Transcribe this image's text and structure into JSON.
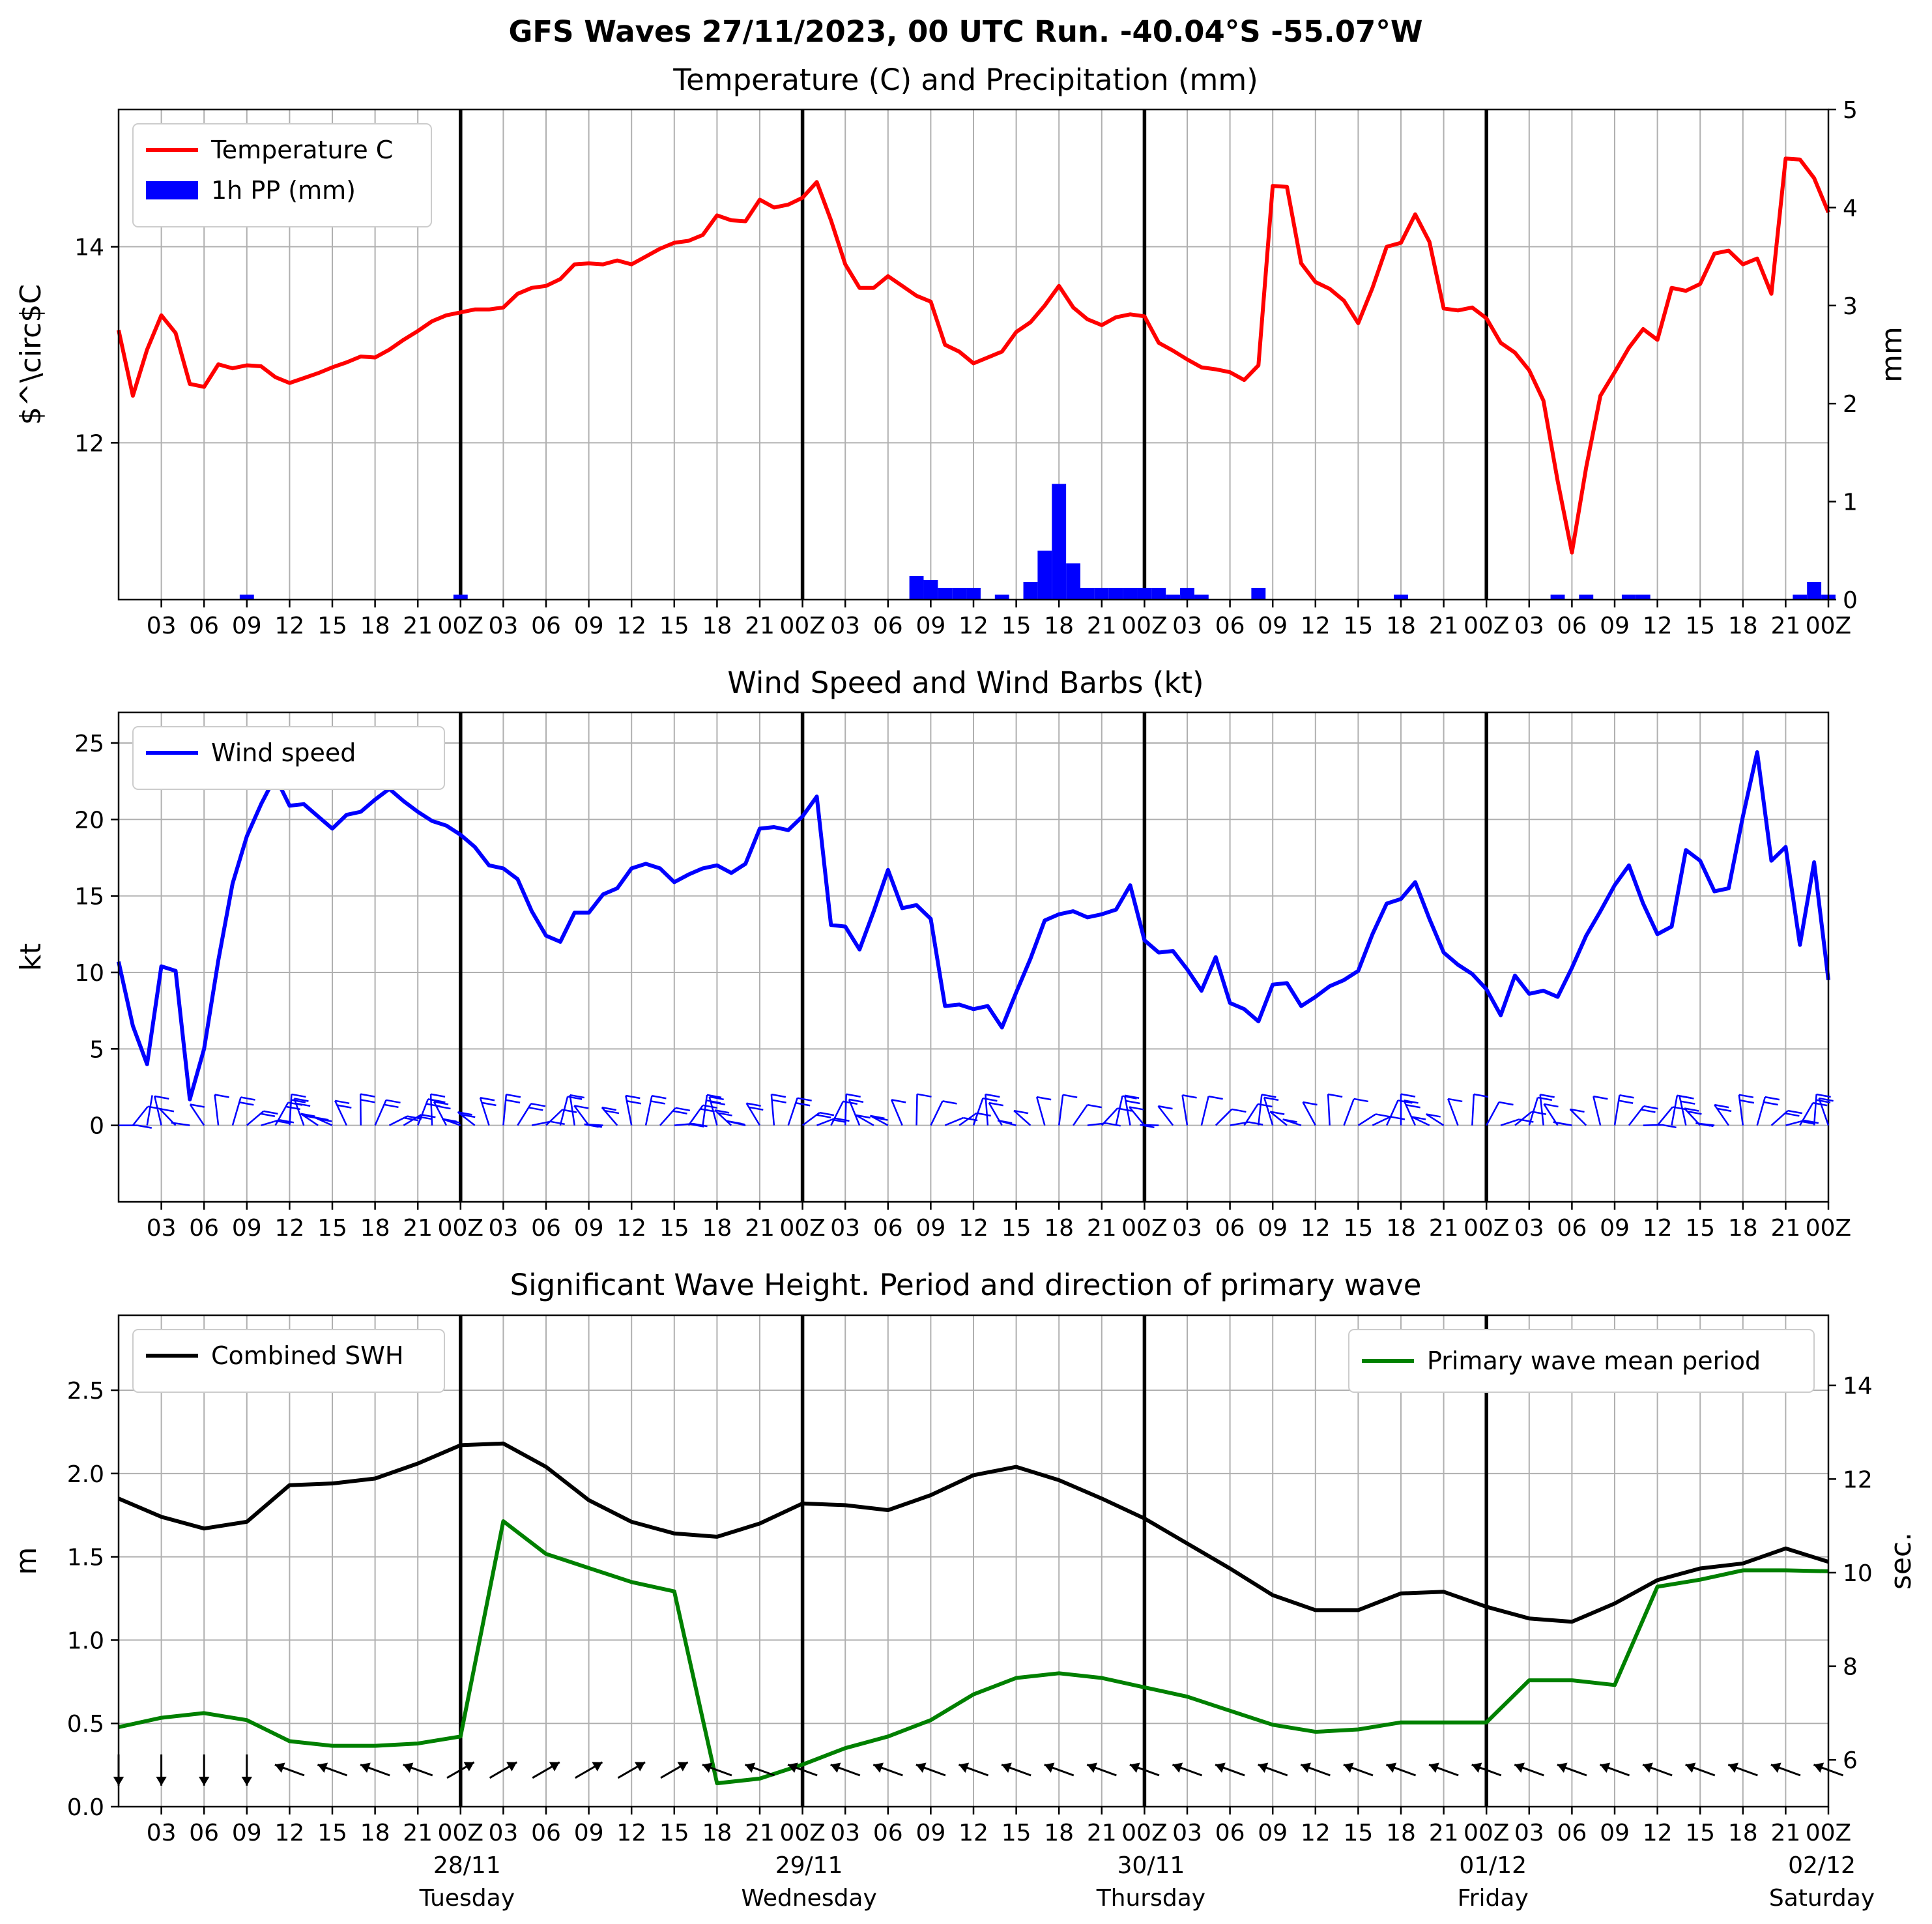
{
  "title": "GFS Waves 27/11/2023, 00 UTC Run. -40.04°S -55.07°W",
  "time_axis": {
    "tick_labels": [
      "03",
      "06",
      "09",
      "12",
      "15",
      "18",
      "21",
      "00Z",
      "03",
      "06",
      "09",
      "12",
      "15",
      "18",
      "21",
      "00Z",
      "03",
      "06",
      "09",
      "12",
      "15",
      "18",
      "21",
      "00Z",
      "03",
      "06",
      "09",
      "12",
      "15",
      "18",
      "21",
      "00Z",
      "03",
      "06",
      "09",
      "12",
      "15",
      "18",
      "21",
      "00Z"
    ],
    "day_labels": [
      {
        "date": "28/11",
        "weekday": "Tuesday"
      },
      {
        "date": "29/11",
        "weekday": "Wednesday"
      },
      {
        "date": "30/11",
        "weekday": "Thursday"
      },
      {
        "date": "01/12",
        "weekday": "Friday"
      },
      {
        "date": "02/12",
        "weekday": "Saturday"
      }
    ]
  },
  "chart_data": [
    {
      "type": "line",
      "title": "Temperature (C) and Precipitation (mm)",
      "ylabel": "$^\\circ$C",
      "ylabel_right": "mm",
      "x_unit": "hours from 27/11/2023 00 UTC",
      "xlim": [
        0,
        120
      ],
      "ylim": [
        10.4,
        15.4
      ],
      "y_ticks": [
        12,
        14
      ],
      "ylim_right": [
        0,
        5
      ],
      "y_ticks_right": [
        0,
        1,
        2,
        3,
        4,
        5
      ],
      "legend": "top-left",
      "grid": true,
      "series": [
        {
          "name": "Temperature C",
          "color": "#ff0000",
          "x": [
            0,
            1,
            2,
            3,
            4,
            5,
            6,
            7,
            8,
            9,
            10,
            11,
            12,
            13,
            14,
            15,
            16,
            17,
            18,
            19,
            20,
            21,
            22,
            23,
            24,
            25,
            26,
            27,
            28,
            29,
            30,
            31,
            32,
            33,
            34,
            35,
            36,
            37,
            38,
            39,
            40,
            41,
            42,
            43,
            44,
            45,
            46,
            47,
            48,
            49,
            50,
            51,
            52,
            53,
            54,
            55,
            56,
            57,
            58,
            59,
            60,
            61,
            62,
            63,
            64,
            65,
            66,
            67,
            68,
            69,
            70,
            71,
            72,
            73,
            74,
            75,
            76,
            77,
            78,
            79,
            80,
            81,
            82,
            83,
            84,
            85,
            86,
            87,
            88,
            89,
            90,
            91,
            92,
            93,
            94,
            95,
            96,
            97,
            98,
            99,
            100,
            101,
            102,
            103,
            104,
            105,
            106,
            107,
            108,
            109,
            110,
            111,
            112,
            113,
            114,
            115,
            116,
            117,
            118,
            119,
            120
          ],
          "values": [
            13.15,
            12.48,
            12.95,
            13.3,
            13.12,
            12.6,
            12.57,
            12.8,
            12.76,
            12.79,
            12.78,
            12.67,
            12.61,
            12.66,
            12.71,
            12.77,
            12.82,
            12.88,
            12.87,
            12.95,
            13.05,
            13.14,
            13.24,
            13.3,
            13.33,
            13.36,
            13.36,
            13.38,
            13.52,
            13.58,
            13.6,
            13.67,
            13.82,
            13.83,
            13.82,
            13.86,
            13.82,
            13.9,
            13.98,
            14.04,
            14.06,
            14.12,
            14.32,
            14.27,
            14.26,
            14.48,
            14.4,
            14.43,
            14.5,
            14.66,
            14.27,
            13.82,
            13.58,
            13.58,
            13.7,
            13.6,
            13.5,
            13.44,
            13.0,
            12.93,
            12.81,
            12.87,
            12.93,
            13.13,
            13.23,
            13.4,
            13.6,
            13.38,
            13.26,
            13.2,
            13.28,
            13.31,
            13.29,
            13.02,
            12.94,
            12.85,
            12.77,
            12.75,
            12.72,
            12.64,
            12.79,
            14.62,
            14.61,
            13.83,
            13.64,
            13.57,
            13.45,
            13.22,
            13.58,
            14.0,
            14.04,
            14.33,
            14.05,
            13.37,
            13.35,
            13.38,
            13.27,
            13.02,
            12.92,
            12.74,
            12.43,
            11.61,
            10.88,
            11.75,
            12.48,
            12.72,
            12.97,
            13.16,
            13.05,
            13.58,
            13.55,
            13.62,
            13.93,
            13.96,
            13.82,
            13.88,
            13.52,
            14.9,
            14.89,
            14.7,
            14.35
          ]
        },
        {
          "name": "1h PP (mm)",
          "type": "bar",
          "axis": "right",
          "color": "#0000ff",
          "x": [
            9,
            24,
            56,
            57,
            58,
            59,
            60,
            62,
            64,
            65,
            66,
            67,
            68,
            69,
            70,
            71,
            72,
            73,
            74,
            75,
            76,
            80,
            90,
            101,
            103,
            106,
            107,
            118,
            119,
            120
          ],
          "values": [
            0.05,
            0.05,
            0.24,
            0.2,
            0.12,
            0.12,
            0.12,
            0.05,
            0.18,
            0.5,
            1.18,
            0.37,
            0.12,
            0.12,
            0.12,
            0.12,
            0.12,
            0.12,
            0.05,
            0.12,
            0.05,
            0.12,
            0.05,
            0.05,
            0.05,
            0.05,
            0.05,
            0.05,
            0.18,
            0.05
          ]
        }
      ]
    },
    {
      "type": "line",
      "title": "Wind Speed and Wind Barbs (kt)",
      "ylabel": "kt",
      "xlim": [
        0,
        120
      ],
      "ylim": [
        -5,
        27
      ],
      "y_ticks": [
        0,
        5,
        10,
        15,
        20,
        25
      ],
      "legend": "top-left",
      "grid": true,
      "series": [
        {
          "name": "Wind speed",
          "color": "#0000ff",
          "x": [
            0,
            1,
            2,
            3,
            4,
            5,
            6,
            7,
            8,
            9,
            10,
            11,
            12,
            13,
            14,
            15,
            16,
            17,
            18,
            19,
            20,
            21,
            22,
            23,
            24,
            25,
            26,
            27,
            28,
            29,
            30,
            31,
            32,
            33,
            34,
            35,
            36,
            37,
            38,
            39,
            40,
            41,
            42,
            43,
            44,
            45,
            46,
            47,
            48,
            49,
            50,
            51,
            52,
            53,
            54,
            55,
            56,
            57,
            58,
            59,
            60,
            61,
            62,
            63,
            64,
            65,
            66,
            67,
            68,
            69,
            70,
            71,
            72,
            73,
            74,
            75,
            76,
            77,
            78,
            79,
            80,
            81,
            82,
            83,
            84,
            85,
            86,
            87,
            88,
            89,
            90,
            91,
            92,
            93,
            94,
            95,
            96,
            97,
            98,
            99,
            100,
            101,
            102,
            103,
            104,
            105,
            106,
            107,
            108,
            109,
            110,
            111,
            112,
            113,
            114,
            115,
            116,
            117,
            118,
            119,
            120
          ],
          "values": [
            10.7,
            6.5,
            4.0,
            10.4,
            10.1,
            1.7,
            5.0,
            10.8,
            15.8,
            18.9,
            21.0,
            22.8,
            20.9,
            21.0,
            20.2,
            19.4,
            20.3,
            20.5,
            21.3,
            22.0,
            21.2,
            20.5,
            19.9,
            19.6,
            19.0,
            18.2,
            17.0,
            16.8,
            16.1,
            14.0,
            12.4,
            12.0,
            13.9,
            13.9,
            15.1,
            15.5,
            16.8,
            17.1,
            16.8,
            15.9,
            16.4,
            16.8,
            17.0,
            16.5,
            17.1,
            19.4,
            19.5,
            19.3,
            20.2,
            21.5,
            13.1,
            13.0,
            11.5,
            14.0,
            16.7,
            14.2,
            14.4,
            13.5,
            7.8,
            7.9,
            7.6,
            7.8,
            6.4,
            8.7,
            10.9,
            13.4,
            13.8,
            14.0,
            13.6,
            13.8,
            14.1,
            15.7,
            12.1,
            11.3,
            11.4,
            10.2,
            8.8,
            11.0,
            8.0,
            7.6,
            6.8,
            9.2,
            9.3,
            7.8,
            8.4,
            9.1,
            9.5,
            10.1,
            12.5,
            14.5,
            14.8,
            15.9,
            13.5,
            11.3,
            10.5,
            9.9,
            8.9,
            7.2,
            9.8,
            8.6,
            8.8,
            8.4,
            10.3,
            12.4,
            14.0,
            15.7,
            17.0,
            14.5,
            12.5,
            13.0,
            18.0,
            17.3,
            15.3,
            15.5,
            20.2,
            24.4,
            17.3,
            18.2,
            11.8,
            17.2,
            9.5
          ]
        }
      ]
    },
    {
      "type": "line",
      "title": "Significant Wave Height. Period and direction of primary wave",
      "ylabel": "m",
      "ylabel_right": "sec.",
      "xlim": [
        0,
        120
      ],
      "ylim": [
        0,
        2.95
      ],
      "y_ticks": [
        0.0,
        0.5,
        1.0,
        1.5,
        2.0,
        2.5
      ],
      "ylim_right": [
        5,
        15.5
      ],
      "y_ticks_right": [
        6,
        8,
        10,
        12,
        14
      ],
      "grid": true,
      "legend": "top-left",
      "legend_right": "top-right",
      "series": [
        {
          "name": "Combined SWH",
          "color": "#000000",
          "x": [
            0,
            3,
            6,
            9,
            12,
            15,
            18,
            21,
            24,
            27,
            30,
            33,
            36,
            39,
            42,
            45,
            48,
            51,
            54,
            57,
            60,
            63,
            66,
            69,
            72,
            75,
            78,
            81,
            84,
            87,
            90,
            93,
            96,
            99,
            102,
            105,
            108,
            111,
            114,
            117,
            120
          ],
          "values": [
            1.85,
            1.74,
            1.67,
            1.71,
            1.93,
            1.94,
            1.97,
            2.06,
            2.17,
            2.18,
            2.04,
            1.84,
            1.71,
            1.64,
            1.62,
            1.7,
            1.82,
            1.81,
            1.78,
            1.87,
            1.99,
            2.04,
            1.96,
            1.85,
            1.73,
            1.58,
            1.43,
            1.27,
            1.18,
            1.18,
            1.28,
            1.29,
            1.2,
            1.13,
            1.11,
            1.22,
            1.36,
            1.43,
            1.46,
            1.55,
            1.47
          ]
        },
        {
          "name": "Primary wave mean period",
          "axis": "right",
          "color": "#008000",
          "x": [
            0,
            3,
            6,
            9,
            12,
            15,
            18,
            21,
            24,
            27,
            30,
            33,
            36,
            39,
            42,
            45,
            48,
            51,
            54,
            57,
            60,
            63,
            66,
            69,
            72,
            75,
            78,
            81,
            84,
            87,
            90,
            93,
            96,
            99,
            102,
            105,
            108,
            111,
            114,
            117,
            120
          ],
          "values": [
            6.7,
            6.9,
            7.0,
            6.85,
            6.4,
            6.3,
            6.3,
            6.35,
            6.5,
            11.1,
            10.4,
            10.1,
            9.8,
            9.6,
            5.5,
            5.6,
            5.9,
            6.25,
            6.5,
            6.85,
            7.4,
            7.75,
            7.85,
            7.75,
            7.55,
            7.35,
            7.05,
            6.75,
            6.6,
            6.65,
            6.8,
            6.8,
            6.8,
            7.7,
            7.7,
            7.6,
            9.7,
            9.85,
            10.05,
            10.05,
            10.03
          ]
        }
      ]
    }
  ]
}
